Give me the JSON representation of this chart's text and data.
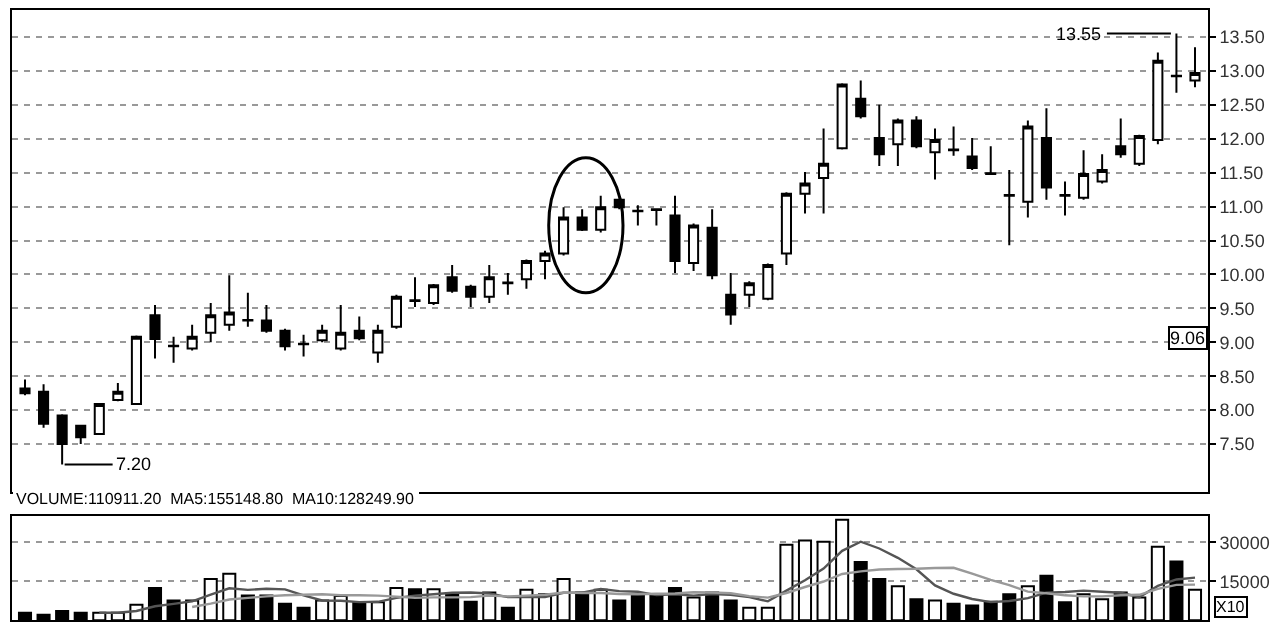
{
  "chart_data": [
    {
      "type": "candlestick",
      "categories": [
        null,
        null,
        null,
        null,
        null,
        null,
        null,
        null,
        null,
        null,
        null,
        null,
        null,
        null,
        null,
        null,
        null,
        null,
        null,
        null,
        null,
        null,
        null,
        null,
        null,
        null,
        null,
        null,
        null,
        null,
        null,
        null,
        null,
        null,
        null,
        null,
        null,
        null,
        null,
        null,
        null,
        null,
        null,
        null,
        null,
        null,
        null,
        null,
        null,
        null,
        null,
        null,
        null,
        null,
        null,
        null,
        null,
        null,
        null,
        null,
        null,
        null,
        null,
        null
      ],
      "ohlc": [
        [
          8.32,
          8.45,
          8.22,
          8.25
        ],
        [
          8.27,
          8.38,
          7.74,
          7.8
        ],
        [
          7.92,
          7.94,
          7.2,
          7.5
        ],
        [
          7.77,
          7.78,
          7.5,
          7.6
        ],
        [
          7.65,
          8.1,
          7.64,
          8.09
        ],
        [
          8.15,
          8.4,
          8.13,
          8.27
        ],
        [
          8.09,
          9.1,
          8.08,
          9.08
        ],
        [
          9.4,
          9.55,
          8.76,
          9.05
        ],
        [
          8.95,
          9.08,
          8.7,
          8.94
        ],
        [
          8.91,
          9.26,
          8.88,
          9.08
        ],
        [
          9.14,
          9.58,
          9.0,
          9.4
        ],
        [
          9.26,
          9.99,
          9.17,
          9.44
        ],
        [
          9.33,
          9.73,
          9.23,
          9.32
        ],
        [
          9.32,
          9.55,
          9.14,
          9.17
        ],
        [
          9.17,
          9.2,
          8.88,
          8.94
        ],
        [
          8.98,
          9.11,
          8.79,
          8.97
        ],
        [
          9.03,
          9.26,
          9.0,
          9.17
        ],
        [
          8.91,
          9.55,
          8.88,
          9.14
        ],
        [
          9.17,
          9.38,
          9.03,
          9.06
        ],
        [
          8.85,
          9.26,
          8.7,
          9.17
        ],
        [
          9.23,
          9.7,
          9.2,
          9.67
        ],
        [
          9.62,
          9.96,
          9.52,
          9.61
        ],
        [
          9.58,
          9.86,
          9.55,
          9.84
        ],
        [
          9.96,
          10.14,
          9.73,
          9.76
        ],
        [
          9.82,
          9.85,
          9.52,
          9.67
        ],
        [
          9.67,
          10.14,
          9.58,
          9.96
        ],
        [
          9.88,
          10.02,
          9.7,
          9.87
        ],
        [
          9.93,
          10.22,
          9.79,
          10.2
        ],
        [
          10.2,
          10.35,
          9.93,
          10.31
        ],
        [
          10.31,
          10.99,
          10.28,
          10.84
        ],
        [
          10.84,
          10.96,
          10.64,
          10.66
        ],
        [
          10.66,
          11.16,
          10.62,
          10.99
        ],
        [
          11.1,
          11.12,
          10.96,
          10.99
        ],
        [
          10.94,
          11.02,
          10.72,
          10.93
        ],
        [
          10.96,
          10.97,
          10.72,
          10.95
        ],
        [
          10.87,
          11.16,
          10.02,
          10.2
        ],
        [
          10.17,
          10.75,
          10.05,
          10.72
        ],
        [
          10.69,
          10.96,
          9.93,
          9.99
        ],
        [
          9.7,
          10.02,
          9.26,
          9.41
        ],
        [
          9.7,
          9.9,
          9.52,
          9.87
        ],
        [
          9.64,
          10.16,
          9.62,
          10.14
        ],
        [
          10.31,
          11.21,
          10.14,
          11.19
        ],
        [
          11.19,
          11.51,
          10.9,
          11.34
        ],
        [
          11.42,
          12.15,
          10.9,
          11.63
        ],
        [
          11.86,
          12.82,
          11.84,
          12.8
        ],
        [
          12.59,
          12.86,
          12.3,
          12.33
        ],
        [
          12.01,
          12.5,
          11.6,
          11.77
        ],
        [
          11.92,
          12.3,
          11.6,
          12.27
        ],
        [
          12.27,
          12.33,
          11.86,
          11.89
        ],
        [
          11.8,
          12.15,
          11.4,
          11.98
        ],
        [
          11.84,
          12.18,
          11.75,
          11.83
        ],
        [
          11.74,
          12.01,
          11.54,
          11.57
        ],
        [
          11.49,
          11.89,
          11.47,
          11.48
        ],
        [
          11.17,
          11.54,
          10.43,
          11.16
        ],
        [
          11.07,
          12.27,
          10.84,
          12.18
        ],
        [
          12.01,
          12.45,
          11.1,
          11.28
        ],
        [
          11.17,
          11.37,
          10.87,
          11.16
        ],
        [
          11.13,
          11.83,
          11.1,
          11.48
        ],
        [
          11.37,
          11.77,
          11.34,
          11.54
        ],
        [
          11.89,
          12.3,
          11.72,
          11.77
        ],
        [
          11.63,
          12.06,
          11.6,
          12.04
        ],
        [
          11.98,
          13.27,
          11.92,
          13.15
        ],
        [
          12.93,
          13.55,
          12.68,
          12.92
        ],
        [
          12.86,
          13.35,
          12.76,
          12.97
        ]
      ],
      "colors": [
        "#000000",
        "#000000",
        "#000000",
        "#000000",
        "#ffffff",
        "#ffffff",
        "#ffffff",
        "#000000",
        "#000000",
        "#ffffff",
        "#ffffff",
        "#ffffff",
        "#000000",
        "#000000",
        "#000000",
        "#000000",
        "#ffffff",
        "#ffffff",
        "#000000",
        "#ffffff",
        "#ffffff",
        "#000000",
        "#ffffff",
        "#000000",
        "#000000",
        "#ffffff",
        "#000000",
        "#ffffff",
        "#ffffff",
        "#ffffff",
        "#000000",
        "#ffffff",
        "#000000",
        "#000000",
        "#000000",
        "#000000",
        "#ffffff",
        "#000000",
        "#000000",
        "#ffffff",
        "#ffffff",
        "#ffffff",
        "#ffffff",
        "#ffffff",
        "#ffffff",
        "#000000",
        "#000000",
        "#ffffff",
        "#000000",
        "#ffffff",
        "#000000",
        "#000000",
        "#000000",
        "#000000",
        "#ffffff",
        "#000000",
        "#000000",
        "#ffffff",
        "#ffffff",
        "#000000",
        "#ffffff",
        "#ffffff",
        "#000000",
        "#ffffff"
      ],
      "ylim": [
        6.8,
        13.9
      ],
      "yticks": [
        {
          "value": 7.5,
          "label": "7.50"
        },
        {
          "value": 8,
          "label": "8.00"
        },
        {
          "value": 8.5,
          "label": "8.50"
        },
        {
          "value": 9,
          "label": "9.00"
        },
        {
          "value": 9.5,
          "label": "9.50"
        },
        {
          "value": 10,
          "label": "10.00"
        },
        {
          "value": 10.5,
          "label": "10.50"
        },
        {
          "value": 11,
          "label": "11.00"
        },
        {
          "value": 11.5,
          "label": "11.50"
        },
        {
          "value": 12,
          "label": "12.00"
        },
        {
          "value": 12.5,
          "label": "12.50"
        },
        {
          "value": 13,
          "label": "13.00"
        },
        {
          "value": 13.5,
          "label": "13.50"
        }
      ],
      "grid": "y",
      "tick_labels": "y",
      "annotations": [
        "7.20",
        "13.55",
        "9.06"
      ]
    },
    {
      "type": "bar",
      "categories": [
        null,
        null,
        null,
        null,
        null,
        null,
        null,
        null,
        null,
        null,
        null,
        null,
        null,
        null,
        null,
        null,
        null,
        null,
        null,
        null,
        null,
        null,
        null,
        null,
        null,
        null,
        null,
        null,
        null,
        null,
        null,
        null,
        null,
        null,
        null,
        null,
        null,
        null,
        null,
        null,
        null,
        null,
        null,
        null,
        null,
        null,
        null,
        null,
        null,
        null,
        null,
        null,
        null,
        null,
        null,
        null,
        null,
        null,
        null,
        null,
        null,
        null,
        null,
        null
      ],
      "series": [
        {
          "type": "bar",
          "values": [
            2900,
            2100,
            3600,
            2900,
            2900,
            2900,
            6000,
            12400,
            7600,
            7600,
            15900,
            17900,
            9500,
            9500,
            6400,
            4800,
            7600,
            9300,
            6900,
            6900,
            12400,
            11900,
            11900,
            10000,
            7100,
            10700,
            4800,
            11700,
            10000,
            15900,
            10700,
            11700,
            7600,
            9300,
            9300,
            12400,
            8800,
            10700,
            7600,
            4800,
            4800,
            29000,
            30700,
            30200,
            38600,
            22400,
            15900,
            13100,
            8100,
            7600,
            6400,
            5700,
            7100,
            10000,
            13100,
            17100,
            6900,
            10000,
            8100,
            10700,
            8800,
            28300,
            22600,
            11700
          ],
          "colors": [
            "#000000",
            "#000000",
            "#000000",
            "#000000",
            "#ffffff",
            "#ffffff",
            "#ffffff",
            "#000000",
            "#000000",
            "#ffffff",
            "#ffffff",
            "#ffffff",
            "#000000",
            "#000000",
            "#000000",
            "#000000",
            "#ffffff",
            "#ffffff",
            "#000000",
            "#ffffff",
            "#ffffff",
            "#000000",
            "#ffffff",
            "#000000",
            "#000000",
            "#ffffff",
            "#000000",
            "#ffffff",
            "#ffffff",
            "#ffffff",
            "#000000",
            "#ffffff",
            "#000000",
            "#000000",
            "#000000",
            "#000000",
            "#ffffff",
            "#000000",
            "#000000",
            "#ffffff",
            "#ffffff",
            "#ffffff",
            "#ffffff",
            "#ffffff",
            "#ffffff",
            "#000000",
            "#000000",
            "#ffffff",
            "#000000",
            "#ffffff",
            "#000000",
            "#000000",
            "#000000",
            "#000000",
            "#ffffff",
            "#000000",
            "#000000",
            "#ffffff",
            "#ffffff",
            "#000000",
            "#ffffff",
            "#ffffff",
            "#000000",
            "#ffffff"
          ]
        },
        {
          "type": "line",
          "color": "#555555",
          "values": [
            null,
            null,
            null,
            null,
            2900,
            2900,
            3600,
            5400,
            6300,
            7300,
            9900,
            12300,
            11700,
            12100,
            11900,
            9600,
            7600,
            7500,
            7000,
            7100,
            8600,
            9500,
            10000,
            10600,
            10700,
            10300,
            8900,
            8900,
            8900,
            10600,
            10600,
            12000,
            11200,
            11000,
            9700,
            10000,
            9500,
            10100,
            9800,
            8900,
            7300,
            11400,
            15400,
            19900,
            26700,
            30200,
            27600,
            24000,
            19600,
            13400,
            10200,
            8200,
            7000,
            7400,
            8500,
            10600,
            10900,
            11400,
            11000,
            10600,
            8900,
            13200,
            15700,
            16400
          ]
        },
        {
          "type": "line",
          "color": "#999999",
          "values": [
            null,
            null,
            null,
            null,
            null,
            null,
            null,
            null,
            null,
            5100,
            6400,
            8000,
            8600,
            9200,
            9600,
            9800,
            10000,
            9600,
            9600,
            9500,
            9100,
            8600,
            8800,
            8800,
            8900,
            9500,
            9200,
            9500,
            9800,
            10700,
            10500,
            10500,
            10100,
            10000,
            10200,
            10300,
            10800,
            10700,
            10400,
            9300,
            8700,
            10500,
            12800,
            14900,
            17800,
            18800,
            19500,
            19700,
            19800,
            20100,
            20200,
            17900,
            15500,
            13500,
            11000,
            10400,
            9600,
            9200,
            9200,
            9600,
            9800,
            12100,
            13600,
            13700
          ]
        }
      ],
      "ylim": [
        0,
        40000
      ],
      "yticks": [
        15000,
        30000
      ],
      "grid": "y",
      "tick_labels": "y",
      "annotations": [
        "VOLUME:110911.20  MA5:155148.80  MA10:128249.90",
        "X10"
      ]
    }
  ]
}
